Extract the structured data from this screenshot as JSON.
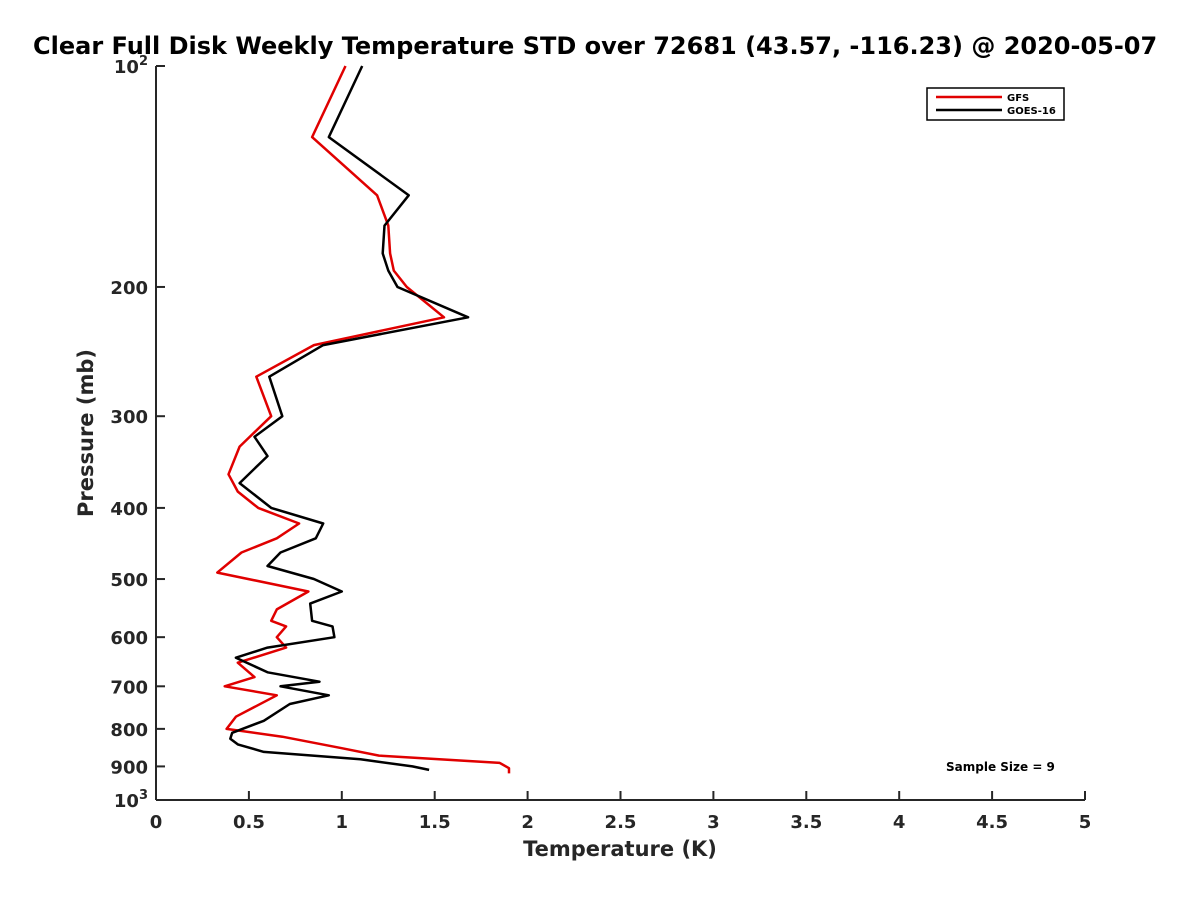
{
  "chart_data": {
    "type": "line",
    "title": "Clear Full Disk Weekly Temperature STD over 72681 (43.57, -116.23) @ 2020-05-07",
    "xlabel": "Temperature (K)",
    "ylabel": "Pressure (mb)",
    "xlim": [
      0,
      5
    ],
    "ylim": [
      100,
      1000
    ],
    "y_scale": "log",
    "y_reversed": true,
    "grid": false,
    "legend_position": "top-right",
    "x_ticks": [
      0,
      0.5,
      1,
      1.5,
      2,
      2.5,
      3,
      3.5,
      4,
      4.5,
      5
    ],
    "x_tick_labels": [
      "0",
      "0.5",
      "1",
      "1.5",
      "2",
      "2.5",
      "3",
      "3.5",
      "4",
      "4.5",
      "5"
    ],
    "y_ticks": [
      100,
      200,
      300,
      400,
      500,
      600,
      700,
      800,
      900,
      1000
    ],
    "y_tick_labels": [
      {
        "base": "10",
        "exp": "2"
      },
      {
        "base": "200",
        "exp": ""
      },
      {
        "base": "300",
        "exp": ""
      },
      {
        "base": "400",
        "exp": ""
      },
      {
        "base": "500",
        "exp": ""
      },
      {
        "base": "600",
        "exp": ""
      },
      {
        "base": "700",
        "exp": ""
      },
      {
        "base": "800",
        "exp": ""
      },
      {
        "base": "900",
        "exp": ""
      },
      {
        "base": "10",
        "exp": "3"
      }
    ],
    "annotation": "Sample Size = 9",
    "series": [
      {
        "name": "GFS",
        "color": "#e00000",
        "points": [
          [
            1.02,
            100
          ],
          [
            0.84,
            125
          ],
          [
            1.19,
            150
          ],
          [
            1.25,
            165
          ],
          [
            1.26,
            180
          ],
          [
            1.28,
            190
          ],
          [
            1.35,
            200
          ],
          [
            1.55,
            220
          ],
          [
            0.85,
            240
          ],
          [
            0.54,
            265
          ],
          [
            0.62,
            300
          ],
          [
            0.45,
            330
          ],
          [
            0.39,
            360
          ],
          [
            0.44,
            380
          ],
          [
            0.55,
            400
          ],
          [
            0.77,
            420
          ],
          [
            0.65,
            440
          ],
          [
            0.46,
            460
          ],
          [
            0.33,
            490
          ],
          [
            0.82,
            520
          ],
          [
            0.65,
            550
          ],
          [
            0.62,
            570
          ],
          [
            0.7,
            580
          ],
          [
            0.65,
            600
          ],
          [
            0.7,
            620
          ],
          [
            0.44,
            650
          ],
          [
            0.53,
            680
          ],
          [
            0.37,
            700
          ],
          [
            0.65,
            720
          ],
          [
            0.43,
            770
          ],
          [
            0.38,
            800
          ],
          [
            0.68,
            820
          ],
          [
            1.0,
            850
          ],
          [
            1.2,
            870
          ],
          [
            1.85,
            890
          ],
          [
            1.9,
            905
          ],
          [
            1.9,
            920
          ]
        ]
      },
      {
        "name": "GOES-16",
        "color": "#000000",
        "points": [
          [
            1.11,
            100
          ],
          [
            0.93,
            125
          ],
          [
            1.36,
            150
          ],
          [
            1.23,
            165
          ],
          [
            1.22,
            180
          ],
          [
            1.25,
            190
          ],
          [
            1.3,
            200
          ],
          [
            1.68,
            220
          ],
          [
            0.9,
            240
          ],
          [
            0.61,
            265
          ],
          [
            0.68,
            300
          ],
          [
            0.53,
            320
          ],
          [
            0.6,
            340
          ],
          [
            0.45,
            370
          ],
          [
            0.62,
            400
          ],
          [
            0.9,
            420
          ],
          [
            0.86,
            440
          ],
          [
            0.67,
            460
          ],
          [
            0.6,
            480
          ],
          [
            0.85,
            500
          ],
          [
            1.0,
            520
          ],
          [
            0.83,
            540
          ],
          [
            0.84,
            570
          ],
          [
            0.95,
            580
          ],
          [
            0.96,
            600
          ],
          [
            0.6,
            620
          ],
          [
            0.43,
            640
          ],
          [
            0.6,
            670
          ],
          [
            0.88,
            690
          ],
          [
            0.67,
            700
          ],
          [
            0.93,
            720
          ],
          [
            0.72,
            740
          ],
          [
            0.58,
            780
          ],
          [
            0.41,
            810
          ],
          [
            0.4,
            825
          ],
          [
            0.44,
            840
          ],
          [
            0.58,
            860
          ],
          [
            1.1,
            880
          ],
          [
            1.38,
            900
          ],
          [
            1.47,
            910
          ]
        ]
      }
    ]
  }
}
